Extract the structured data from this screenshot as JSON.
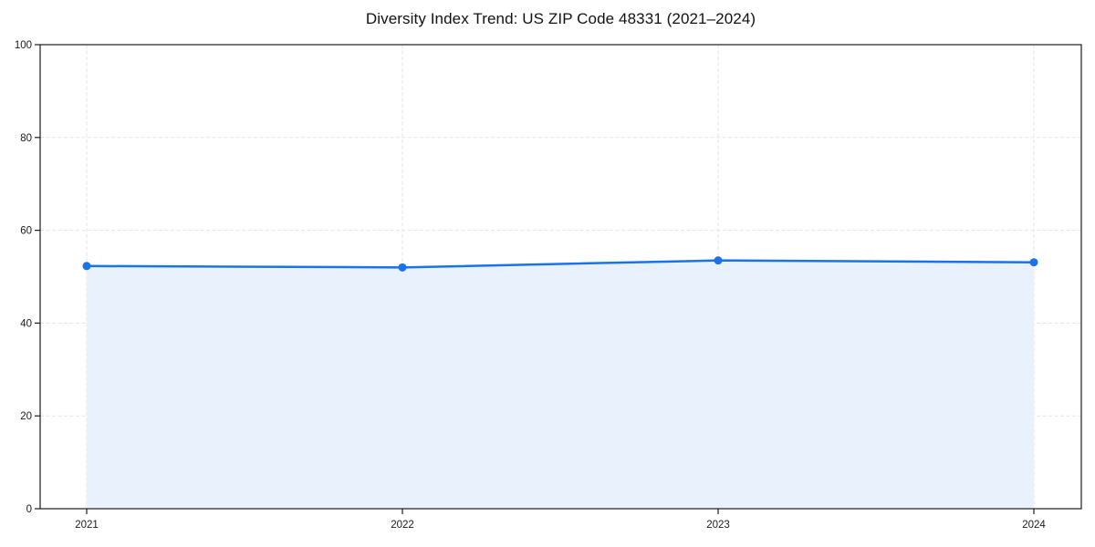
{
  "chart_data": {
    "type": "area",
    "title": "Diversity Index Trend: US ZIP Code 48331 (2021–2024)",
    "categories": [
      "2021",
      "2022",
      "2023",
      "2024"
    ],
    "series": [
      {
        "name": "Diversity Index",
        "values": [
          52.3,
          52.0,
          53.5,
          53.1
        ]
      }
    ],
    "xlabel": "",
    "ylabel": "",
    "ylim": [
      0,
      100
    ],
    "yticks": [
      0,
      20,
      40,
      60,
      80,
      100
    ],
    "grid": true,
    "grid_style": "dashed",
    "legend": false,
    "marker": "circle",
    "colors": {
      "line": "#1a73e8",
      "marker": "#1a73e8",
      "fill": "#e8f1fc",
      "grid": "#e3e3e3",
      "axis": "#1a1a1a",
      "tick_label": "#1a1a1a",
      "background": "#ffffff"
    }
  }
}
